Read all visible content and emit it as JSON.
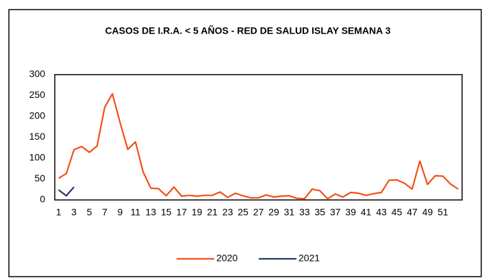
{
  "chart_data": {
    "type": "line",
    "title": "CASOS DE I.R.A. < 5 AÑOS - RED DE SALUD ISLAY SEMANA 3",
    "categories": [
      "1",
      null,
      "3",
      null,
      "5",
      null,
      "7",
      null,
      "9",
      null,
      "11",
      null,
      "13",
      null,
      "15",
      null,
      "17",
      null,
      "19",
      null,
      "21",
      null,
      "23",
      null,
      "25",
      null,
      "27",
      null,
      "29",
      null,
      "31",
      null,
      "33",
      null,
      "35",
      null,
      "37",
      null,
      "39",
      null,
      "41",
      null,
      "43",
      null,
      "45",
      null,
      "47",
      null,
      "49",
      null,
      "51",
      null,
      null
    ],
    "series": [
      {
        "name": "2020",
        "color": "#f24e12",
        "values": [
          52,
          63,
          120,
          128,
          114,
          129,
          222,
          254,
          185,
          121,
          139,
          67,
          28,
          27,
          10,
          31,
          9,
          11,
          9,
          11,
          11,
          19,
          6,
          16,
          10,
          5,
          5,
          12,
          7,
          9,
          10,
          4,
          3,
          26,
          22,
          3,
          14,
          7,
          18,
          16,
          11,
          15,
          18,
          47,
          48,
          40,
          26,
          93,
          37,
          58,
          57,
          38,
          26
        ]
      },
      {
        "name": "2021",
        "color": "#1f3864",
        "values": [
          24,
          10,
          31,
          null,
          null,
          null,
          null,
          null,
          null,
          null,
          null,
          null,
          null,
          null,
          null,
          null,
          null,
          null,
          null,
          null,
          null,
          null,
          null,
          null,
          null,
          null,
          null,
          null,
          null,
          null,
          null,
          null,
          null,
          null,
          null,
          null,
          null,
          null,
          null,
          null,
          null,
          null,
          null,
          null,
          null,
          null,
          null,
          null,
          null,
          null,
          null,
          null,
          null
        ]
      }
    ],
    "ylim": [
      0,
      300
    ],
    "yticks": [
      0,
      50,
      100,
      150,
      200,
      250,
      300
    ],
    "grid": false,
    "legend": "bottom"
  }
}
